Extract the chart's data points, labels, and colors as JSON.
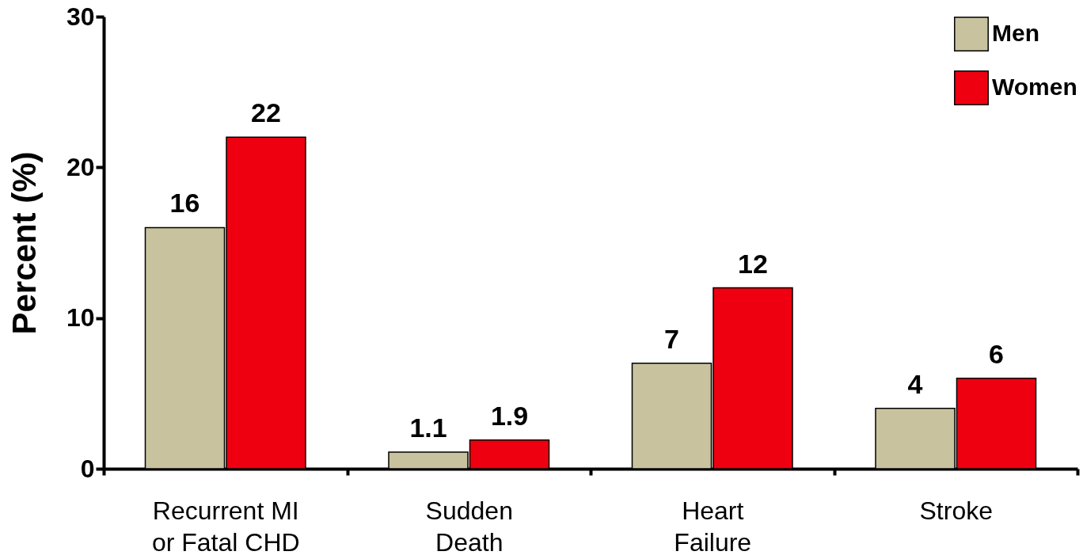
{
  "chart_data": {
    "type": "bar",
    "ylabel": "Percent (%)",
    "categories": [
      "Recurrent MI\nor Fatal CHD",
      "Sudden\nDeath",
      "Heart\nFailure",
      "Stroke"
    ],
    "series": [
      {
        "name": "Men",
        "color": "#c8c39e",
        "values": [
          16,
          1.1,
          7,
          4
        ]
      },
      {
        "name": "Women",
        "color": "#ee0010",
        "values": [
          22,
          1.9,
          12,
          6
        ]
      }
    ],
    "ylim": [
      0,
      30
    ],
    "yticks": [
      0,
      10,
      20,
      30
    ],
    "data_labels": true,
    "grid": false,
    "legend": "top right"
  }
}
